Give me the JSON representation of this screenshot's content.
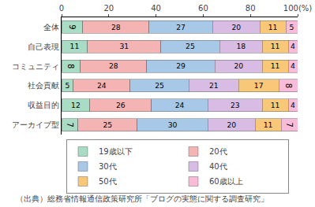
{
  "chart_data": {
    "type": "bar",
    "orientation": "horizontal",
    "stacked": true,
    "data_labels": true,
    "grid": false,
    "legend": "bottom",
    "categories": [
      "全体",
      "自己表現",
      "コミュニティ",
      "社会貢献",
      "収益目的",
      "アーカイブ型"
    ],
    "series": [
      {
        "name": "19歳以下",
        "color": "#a8dcc4",
        "values": [
          9,
          11,
          8,
          5,
          12,
          7
        ]
      },
      {
        "name": "20代",
        "color": "#f4b4b4",
        "values": [
          28,
          31,
          28,
          24,
          26,
          25
        ]
      },
      {
        "name": "30代",
        "color": "#a8c8e8",
        "values": [
          27,
          25,
          29,
          25,
          24,
          30
        ]
      },
      {
        "name": "40代",
        "color": "#d8bce4",
        "values": [
          20,
          18,
          20,
          21,
          23,
          20
        ]
      },
      {
        "name": "50代",
        "color": "#f8c878",
        "values": [
          11,
          11,
          11,
          17,
          11,
          11
        ]
      },
      {
        "name": "60歳以上",
        "color": "#f8bcd8",
        "values": [
          5,
          4,
          4,
          8,
          4,
          7
        ]
      }
    ],
    "xlim": [
      0,
      100
    ],
    "xticks": [
      0,
      20,
      40,
      60,
      80,
      {
        "value": 100,
        "label": "100(%)"
      }
    ],
    "annotations": [
      "（出典）総務省情報通信政策研究所「ブログの実態に関する調査研究」"
    ]
  }
}
